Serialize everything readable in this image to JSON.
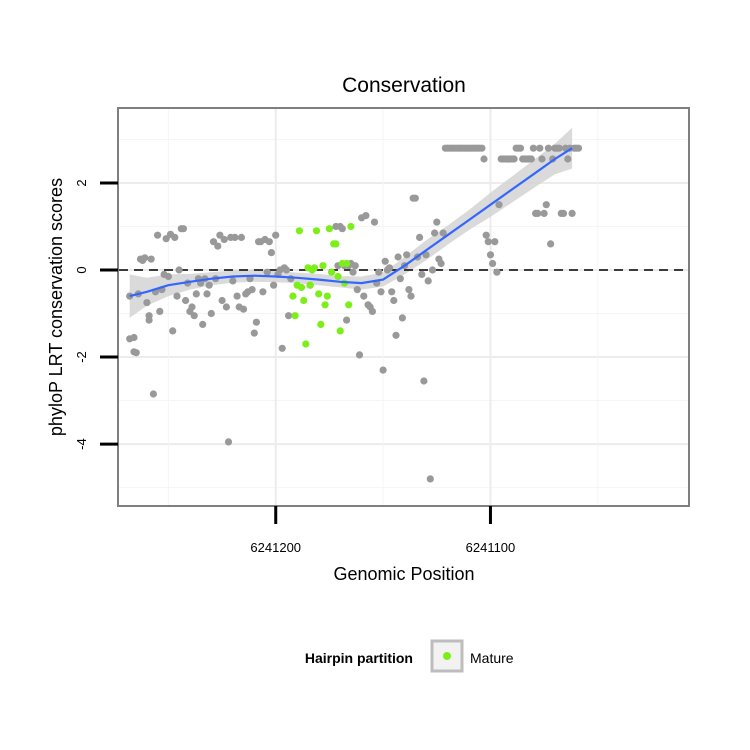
{
  "chart_data": {
    "type": "scatter",
    "title": "Conservation",
    "xlabel": "Genomic Position",
    "ylabel": "phyloP LRT conservation scores",
    "x_reversed": true,
    "xlim": [
      6241273,
      6241008
    ],
    "ylim": [
      -5.4,
      3.7
    ],
    "x_ticks": [
      6241200,
      6241100
    ],
    "x_tick_labels": [
      "6241200",
      "6241100"
    ],
    "y_ticks": [
      2,
      0,
      -2,
      -4
    ],
    "y_tick_labels": [
      "2",
      "0",
      "-2",
      "-4"
    ],
    "grid": true,
    "reference_line": {
      "y": 0,
      "style": "dashed"
    },
    "legend": {
      "title": "Hairpin partition",
      "position": "bottom",
      "entries": [
        {
          "label": "Mature",
          "color": "#7cee19"
        }
      ]
    },
    "colors": {
      "background_points": "#999999",
      "mature_points": "#7cee19",
      "smooth_line": "#3366ff",
      "confidence_band": "#d3d3d3"
    },
    "series": [
      {
        "color": "#999999",
        "points": [
          [
            6241268,
            -0.6
          ],
          [
            6241268,
            -1.58
          ],
          [
            6241266,
            -1.55
          ],
          [
            6241266,
            -1.88
          ],
          [
            6241265,
            -1.9
          ],
          [
            6241264,
            -0.55
          ],
          [
            6241263,
            0.25
          ],
          [
            6241262,
            0.22
          ],
          [
            6241261,
            0.28
          ],
          [
            6241260,
            -0.75
          ],
          [
            6241259,
            -1.05
          ],
          [
            6241259,
            -1.15
          ],
          [
            6241258,
            0.25
          ],
          [
            6241257,
            -2.85
          ],
          [
            6241256,
            -0.5
          ],
          [
            6241255,
            0.8
          ],
          [
            6241254,
            -0.95
          ],
          [
            6241253,
            -0.45
          ],
          [
            6241252,
            -0.1
          ],
          [
            6241251,
            0.72
          ],
          [
            6241250,
            -0.15
          ],
          [
            6241249,
            0.82
          ],
          [
            6241248,
            -1.4
          ],
          [
            6241247,
            0.75
          ],
          [
            6241246,
            -0.6
          ],
          [
            6241245,
            0.0
          ],
          [
            6241244,
            0.95
          ],
          [
            6241243,
            0.95
          ],
          [
            6241242,
            -0.7
          ],
          [
            6241241,
            -0.3
          ],
          [
            6241240,
            -0.95
          ],
          [
            6241239,
            -0.85
          ],
          [
            6241238,
            -1.05
          ],
          [
            6241237,
            -0.55
          ],
          [
            6241236,
            -0.2
          ],
          [
            6241235,
            -0.3
          ],
          [
            6241234,
            -1.25
          ],
          [
            6241233,
            -0.2
          ],
          [
            6241232,
            -0.55
          ],
          [
            6241231,
            -0.35
          ],
          [
            6241230,
            -1.0
          ],
          [
            6241229,
            0.65
          ],
          [
            6241228,
            -0.2
          ],
          [
            6241227,
            0.55
          ],
          [
            6241226,
            0.8
          ],
          [
            6241225,
            -0.7
          ],
          [
            6241224,
            0.7
          ],
          [
            6241223,
            -0.85
          ],
          [
            6241222,
            -3.95
          ],
          [
            6241221,
            0.75
          ],
          [
            6241220,
            -0.25
          ],
          [
            6241219,
            0.75
          ],
          [
            6241218,
            -0.6
          ],
          [
            6241217,
            -0.85
          ],
          [
            6241216,
            0.75
          ],
          [
            6241215,
            -0.9
          ],
          [
            6241214,
            -0.55
          ],
          [
            6241213,
            -0.5
          ],
          [
            6241212,
            -0.2
          ],
          [
            6241211,
            -0.45
          ],
          [
            6241210,
            -1.45
          ],
          [
            6241209,
            -1.2
          ],
          [
            6241208,
            0.65
          ],
          [
            6241207,
            0.65
          ],
          [
            6241206,
            -0.5
          ],
          [
            6241205,
            0.7
          ],
          [
            6241204,
            -0.05
          ],
          [
            6241203,
            0.65
          ],
          [
            6241202,
            0.4
          ],
          [
            6241201,
            -0.35
          ],
          [
            6241200,
            0.8
          ],
          [
            6241199,
            -0.1
          ],
          [
            6241198,
            0.0
          ],
          [
            6241197,
            -1.8
          ],
          [
            6241196,
            0.05
          ],
          [
            6241195,
            0.0
          ],
          [
            6241194,
            -1.05
          ],
          [
            6241193,
            -0.2
          ],
          [
            6241184,
            -0.35
          ],
          [
            6241172,
            1.0
          ],
          [
            6241171,
            0.1
          ],
          [
            6241170,
            1.0
          ],
          [
            6241169,
            0.95
          ],
          [
            6241168,
            0.1
          ],
          [
            6241167,
            -1.15
          ],
          [
            6241166,
            0.1
          ],
          [
            6241165,
            0.15
          ],
          [
            6241164,
            -0.05
          ],
          [
            6241163,
            0.1
          ],
          [
            6241162,
            -0.45
          ],
          [
            6241161,
            -1.95
          ],
          [
            6241160,
            1.2
          ],
          [
            6241159,
            -0.6
          ],
          [
            6241158,
            1.25
          ],
          [
            6241157,
            -0.8
          ],
          [
            6241156,
            -0.85
          ],
          [
            6241155,
            -0.95
          ],
          [
            6241154,
            1.1
          ],
          [
            6241153,
            -0.3
          ],
          [
            6241152,
            -0.05
          ],
          [
            6241151,
            -0.5
          ],
          [
            6241150,
            -2.3
          ],
          [
            6241149,
            0.2
          ],
          [
            6241148,
            0.0
          ],
          [
            6241147,
            0.05
          ],
          [
            6241146,
            -0.5
          ],
          [
            6241145,
            -0.7
          ],
          [
            6241144,
            -1.5
          ],
          [
            6241143,
            0.3
          ],
          [
            6241142,
            -0.2
          ],
          [
            6241141,
            -1.1
          ],
          [
            6241140,
            0.1
          ],
          [
            6241139,
            0.35
          ],
          [
            6241138,
            -0.45
          ],
          [
            6241137,
            -0.6
          ],
          [
            6241136,
            1.65
          ],
          [
            6241135,
            1.65
          ],
          [
            6241134,
            0.3
          ],
          [
            6241133,
            0.75
          ],
          [
            6241132,
            -0.1
          ],
          [
            6241131,
            -2.55
          ],
          [
            6241130,
            0.35
          ],
          [
            6241129,
            -0.25
          ],
          [
            6241128,
            -4.8
          ],
          [
            6241127,
            0.0
          ],
          [
            6241126,
            0.85
          ],
          [
            6241125,
            1.1
          ],
          [
            6241124,
            0.25
          ],
          [
            6241123,
            0.15
          ],
          [
            6241122,
            0.85
          ],
          [
            6241121,
            2.8
          ],
          [
            6241120,
            2.8
          ],
          [
            6241119,
            2.8
          ],
          [
            6241118,
            2.8
          ],
          [
            6241117,
            2.8
          ],
          [
            6241116,
            2.8
          ],
          [
            6241115,
            2.8
          ],
          [
            6241114,
            2.8
          ],
          [
            6241113,
            2.8
          ],
          [
            6241112,
            2.8
          ],
          [
            6241111,
            2.8
          ],
          [
            6241110,
            2.8
          ],
          [
            6241109,
            2.8
          ],
          [
            6241108,
            2.8
          ],
          [
            6241107,
            2.8
          ],
          [
            6241106,
            2.8
          ],
          [
            6241105,
            2.8
          ],
          [
            6241104,
            2.8
          ],
          [
            6241103,
            2.55
          ],
          [
            6241102,
            0.8
          ],
          [
            6241101,
            0.65
          ],
          [
            6241100,
            0.35
          ],
          [
            6241099,
            0.15
          ],
          [
            6241098,
            0.65
          ],
          [
            6241097,
            -0.05
          ],
          [
            6241096,
            1.5
          ],
          [
            6241095,
            2.55
          ],
          [
            6241094,
            2.55
          ],
          [
            6241093,
            2.55
          ],
          [
            6241092,
            2.55
          ],
          [
            6241091,
            2.55
          ],
          [
            6241090,
            2.55
          ],
          [
            6241089,
            2.55
          ],
          [
            6241088,
            2.8
          ],
          [
            6241087,
            2.8
          ],
          [
            6241086,
            2.8
          ],
          [
            6241085,
            2.55
          ],
          [
            6241084,
            2.55
          ],
          [
            6241083,
            2.55
          ],
          [
            6241082,
            2.55
          ],
          [
            6241081,
            2.55
          ],
          [
            6241080,
            2.8
          ],
          [
            6241079,
            1.3
          ],
          [
            6241078,
            1.3
          ],
          [
            6241077,
            2.8
          ],
          [
            6241076,
            2.55
          ],
          [
            6241075,
            1.3
          ],
          [
            6241074,
            1.5
          ],
          [
            6241073,
            2.8
          ],
          [
            6241072,
            0.6
          ],
          [
            6241071,
            2.55
          ],
          [
            6241070,
            2.8
          ],
          [
            6241069,
            2.8
          ],
          [
            6241068,
            2.8
          ],
          [
            6241067,
            1.3
          ],
          [
            6241066,
            1.3
          ],
          [
            6241065,
            2.8
          ],
          [
            6241064,
            2.55
          ],
          [
            6241063,
            2.8
          ],
          [
            6241062,
            1.3
          ],
          [
            6241061,
            2.8
          ],
          [
            6241060,
            2.8
          ],
          [
            6241059,
            2.8
          ]
        ]
      },
      {
        "name": "Mature",
        "color": "#7cee19",
        "points": [
          [
            6241192,
            -0.6
          ],
          [
            6241191,
            -1.05
          ],
          [
            6241190,
            -0.35
          ],
          [
            6241189,
            0.9
          ],
          [
            6241188,
            -0.4
          ],
          [
            6241187,
            -0.7
          ],
          [
            6241186,
            -1.7
          ],
          [
            6241185,
            0.05
          ],
          [
            6241184,
            -0.35
          ],
          [
            6241183,
            0.0
          ],
          [
            6241182,
            0.05
          ],
          [
            6241181,
            0.9
          ],
          [
            6241180,
            -0.55
          ],
          [
            6241179,
            -1.25
          ],
          [
            6241178,
            0.1
          ],
          [
            6241177,
            -0.8
          ],
          [
            6241176,
            -0.6
          ],
          [
            6241175,
            0.95
          ],
          [
            6241174,
            -0.05
          ],
          [
            6241173,
            0.6
          ],
          [
            6241172,
            0.6
          ],
          [
            6241171,
            -0.15
          ],
          [
            6241170,
            -1.4
          ],
          [
            6241169,
            0.15
          ],
          [
            6241168,
            -0.3
          ],
          [
            6241167,
            0.15
          ],
          [
            6241166,
            -0.8
          ],
          [
            6241165,
            1.0
          ]
        ]
      }
    ],
    "smooth": {
      "x": [
        6241268,
        6241260,
        6241250,
        6241240,
        6241230,
        6241220,
        6241210,
        6241200,
        6241190,
        6241180,
        6241170,
        6241160,
        6241150,
        6241140,
        6241130,
        6241120,
        6241110,
        6241100,
        6241090,
        6241080,
        6241070,
        6241062
      ],
      "y": [
        -0.6,
        -0.5,
        -0.35,
        -0.27,
        -0.2,
        -0.15,
        -0.13,
        -0.15,
        -0.18,
        -0.22,
        -0.27,
        -0.3,
        -0.22,
        0.1,
        0.45,
        0.8,
        1.15,
        1.5,
        1.85,
        2.2,
        2.55,
        2.8
      ],
      "lower": [
        -1.1,
        -0.82,
        -0.6,
        -0.45,
        -0.35,
        -0.29,
        -0.27,
        -0.28,
        -0.3,
        -0.35,
        -0.4,
        -0.45,
        -0.38,
        -0.1,
        0.22,
        0.58,
        0.92,
        1.22,
        1.55,
        1.88,
        2.2,
        2.33
      ],
      "upper": [
        -0.1,
        -0.18,
        -0.1,
        -0.09,
        -0.05,
        -0.01,
        0.01,
        -0.02,
        -0.06,
        -0.09,
        -0.14,
        -0.15,
        -0.06,
        0.3,
        0.68,
        1.02,
        1.38,
        1.78,
        2.15,
        2.52,
        2.9,
        3.27
      ]
    }
  }
}
